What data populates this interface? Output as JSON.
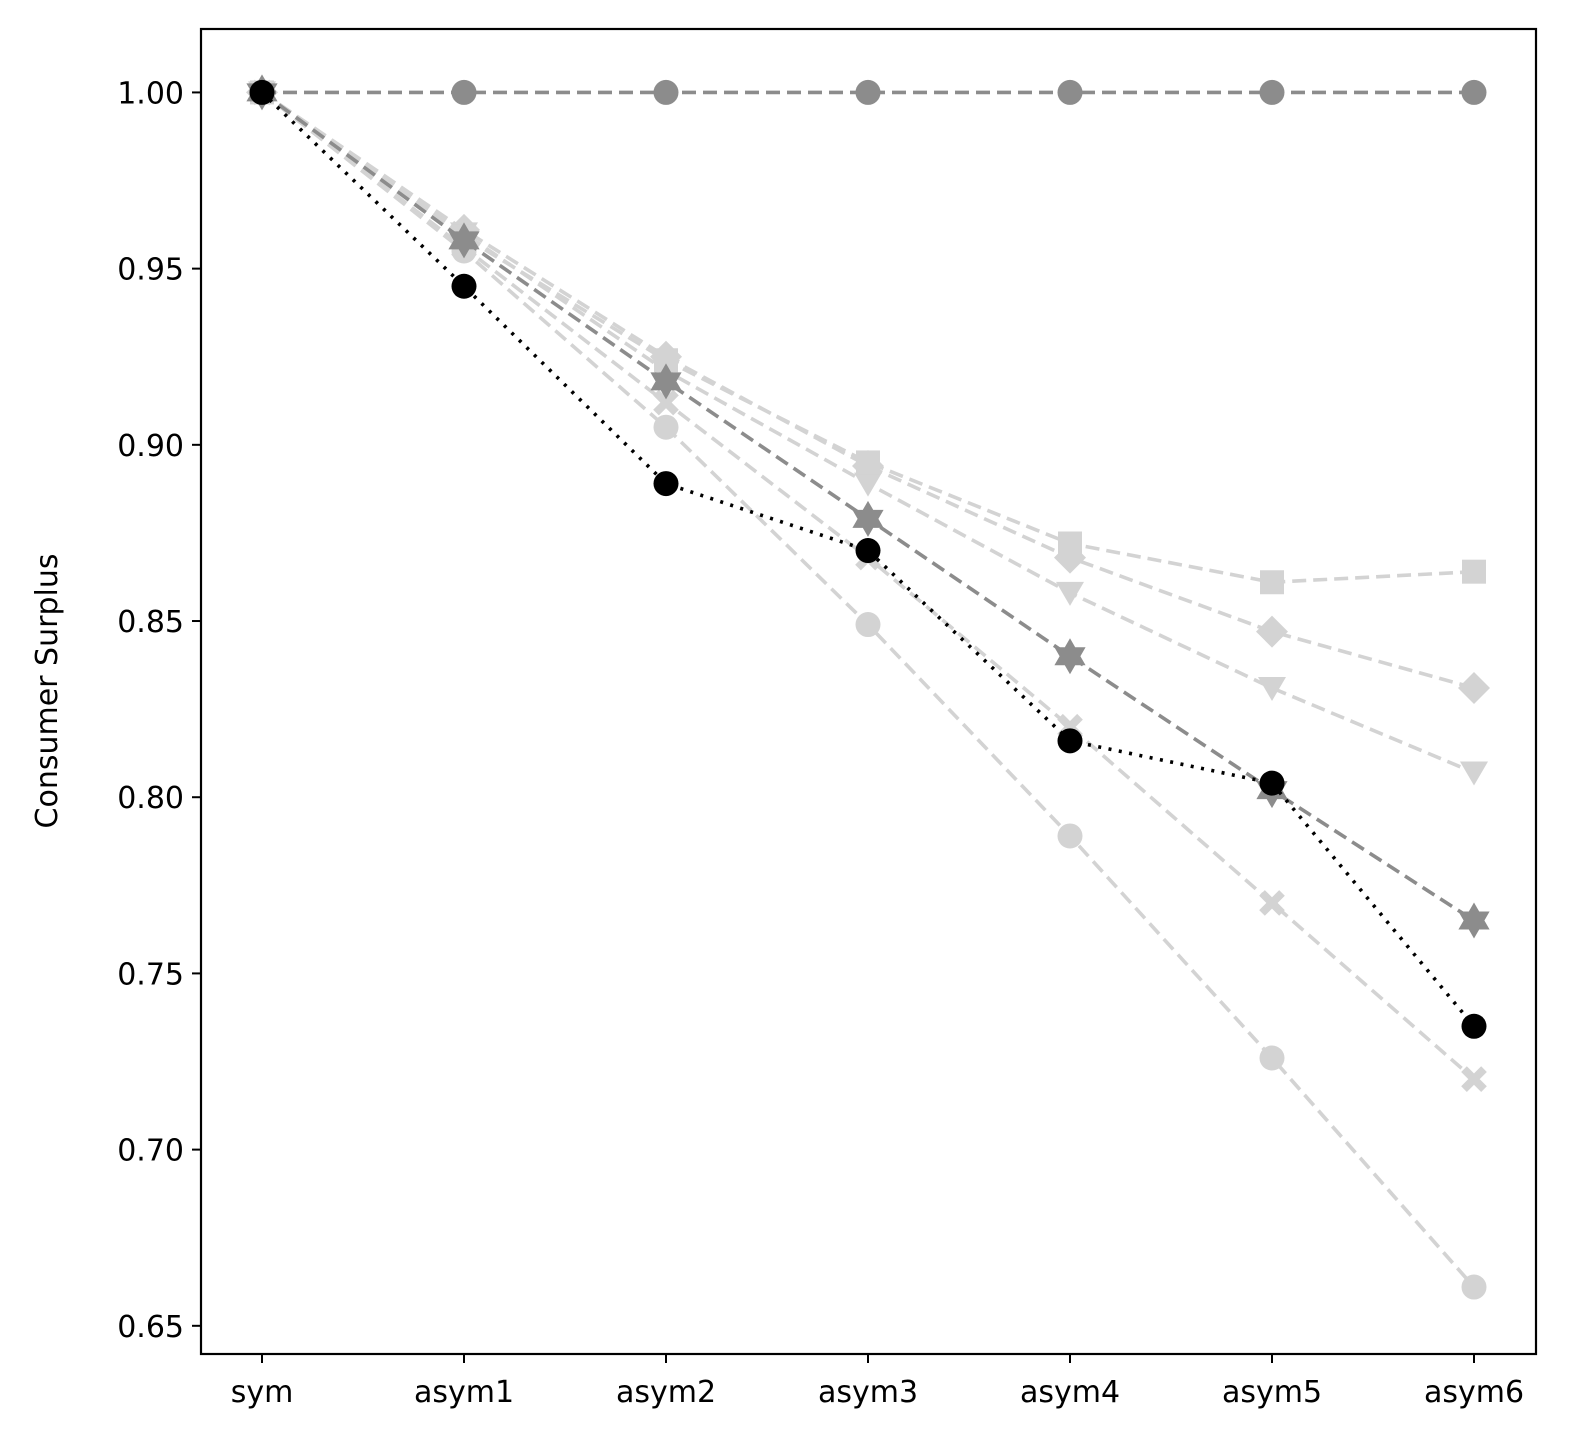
{
  "chart_data": {
    "type": "line",
    "title": "",
    "xlabel": "",
    "ylabel": "Consumer Surplus",
    "categories": [
      "sym",
      "asym1",
      "asym2",
      "asym3",
      "asym4",
      "asym5",
      "asym6"
    ],
    "ylim": [
      0.642,
      1.018
    ],
    "yticks": [
      0.65,
      0.7,
      0.75,
      0.8,
      0.85,
      0.9,
      0.95,
      1.0
    ],
    "ytick_labels": [
      "0.65",
      "0.70",
      "0.75",
      "0.80",
      "0.85",
      "0.90",
      "0.95",
      "1.00"
    ],
    "grid": false,
    "legend": "none",
    "series": [
      {
        "marker": "circle",
        "color": "#d3d3d3",
        "line": "dashed",
        "values": [
          1.0,
          0.955,
          0.905,
          0.849,
          0.789,
          0.726,
          0.661
        ]
      },
      {
        "marker": "x",
        "color": "#d3d3d3",
        "line": "dashed",
        "values": [
          1.0,
          0.956,
          0.912,
          0.868,
          0.82,
          0.77,
          0.72
        ]
      },
      {
        "marker": "triangle",
        "color": "#d3d3d3",
        "line": "dashed",
        "values": [
          1.0,
          0.96,
          0.921,
          0.889,
          0.858,
          0.831,
          0.807
        ]
      },
      {
        "marker": "diamond",
        "color": "#d3d3d3",
        "line": "dashed",
        "values": [
          1.0,
          0.961,
          0.925,
          0.894,
          0.868,
          0.847,
          0.831
        ]
      },
      {
        "marker": "square",
        "color": "#d3d3d3",
        "line": "dashed",
        "values": [
          1.0,
          0.959,
          0.924,
          0.895,
          0.872,
          0.861,
          0.864
        ]
      },
      {
        "marker": "star",
        "color": "#8c8c8c",
        "line": "dashed",
        "values": [
          1.0,
          0.958,
          0.918,
          0.879,
          0.84,
          0.802,
          0.765
        ]
      },
      {
        "marker": "circle",
        "color": "#8c8c8c",
        "line": "dashed",
        "values": [
          1.0,
          1.0,
          1.0,
          1.0,
          1.0,
          1.0,
          1.0
        ]
      },
      {
        "marker": "circle",
        "color": "#000000",
        "line": "dotted",
        "values": [
          1.0,
          0.945,
          0.889,
          0.87,
          0.816,
          0.804,
          0.735
        ]
      }
    ]
  }
}
